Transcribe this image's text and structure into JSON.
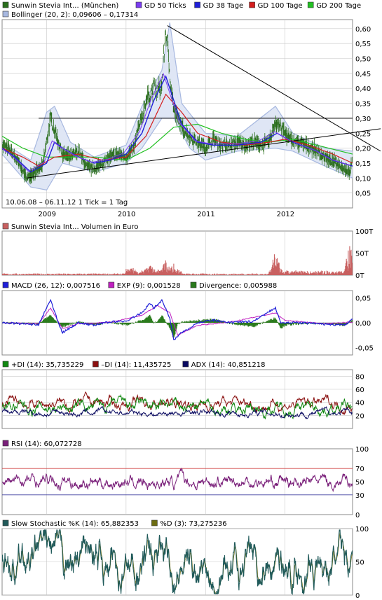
{
  "colors": {
    "price": "#2a6e1c",
    "gd50": "#7b3cf0",
    "gd38": "#1f1fd8",
    "gd100": "#d41e1e",
    "gd200": "#22c022",
    "bollinger": "#a7b8e0",
    "volume": "#c86060",
    "macd": "#1f1fd8",
    "exp": "#c020c0",
    "divergence": "#2a7a1c",
    "plusdi": "#118811",
    "minusdi": "#8a1010",
    "adx": "#0a0a60",
    "rsi": "#7a207a",
    "stoch_k": "#205a5a",
    "stoch_d": "#6b6b10",
    "grid": "#c8c8c8"
  },
  "chart_data": [
    {
      "panel": "price",
      "type": "line",
      "legend": [
        {
          "label": "Sunwin Stevia Int... (München)",
          "color": "#2a6e1c"
        },
        {
          "label": "GD 50 Ticks",
          "color": "#7b3cf0"
        },
        {
          "label": "GD 38 Tage",
          "color": "#1f1fd8"
        },
        {
          "label": "GD 100 Tage",
          "color": "#d41e1e"
        },
        {
          "label": "GD 200 Tage",
          "color": "#22c022"
        },
        {
          "label": "Bollinger (20, 2): 0,09606 – 0,17314",
          "color": "#a7b8e0"
        }
      ],
      "info": "10.06.08 – 06.11.12   1 Tick = 1 Tag",
      "x_ticks": [
        "2009",
        "2010",
        "2011",
        "2012"
      ],
      "y_ticks": [
        "0,05",
        "0,10",
        "0,15",
        "0,20",
        "0,25",
        "0,30",
        "0,35",
        "0,40",
        "0,45",
        "0,50",
        "0,55",
        "0,60"
      ],
      "ylim": [
        0.0,
        0.63
      ],
      "x_range": [
        2008.44,
        2012.85
      ],
      "price": [
        [
          2008.44,
          0.21
        ],
        [
          2008.55,
          0.19
        ],
        [
          2008.65,
          0.15
        ],
        [
          2008.75,
          0.1
        ],
        [
          2008.85,
          0.12
        ],
        [
          2008.95,
          0.14
        ],
        [
          2009.0,
          0.22
        ],
        [
          2009.05,
          0.3
        ],
        [
          2009.1,
          0.26
        ],
        [
          2009.2,
          0.18
        ],
        [
          2009.3,
          0.17
        ],
        [
          2009.4,
          0.19
        ],
        [
          2009.5,
          0.14
        ],
        [
          2009.6,
          0.13
        ],
        [
          2009.7,
          0.15
        ],
        [
          2009.8,
          0.17
        ],
        [
          2009.9,
          0.18
        ],
        [
          2010.0,
          0.17
        ],
        [
          2010.1,
          0.2
        ],
        [
          2010.15,
          0.26
        ],
        [
          2010.2,
          0.3
        ],
        [
          2010.25,
          0.36
        ],
        [
          2010.3,
          0.38
        ],
        [
          2010.35,
          0.4
        ],
        [
          2010.4,
          0.39
        ],
        [
          2010.45,
          0.41
        ],
        [
          2010.5,
          0.6
        ],
        [
          2010.55,
          0.45
        ],
        [
          2010.6,
          0.33
        ],
        [
          2010.7,
          0.27
        ],
        [
          2010.8,
          0.24
        ],
        [
          2010.9,
          0.22
        ],
        [
          2011.0,
          0.2
        ],
        [
          2011.1,
          0.23
        ],
        [
          2011.2,
          0.21
        ],
        [
          2011.3,
          0.21
        ],
        [
          2011.4,
          0.22
        ],
        [
          2011.5,
          0.21
        ],
        [
          2011.6,
          0.22
        ],
        [
          2011.7,
          0.21
        ],
        [
          2011.8,
          0.22
        ],
        [
          2011.88,
          0.29
        ],
        [
          2011.95,
          0.27
        ],
        [
          2012.05,
          0.23
        ],
        [
          2012.15,
          0.22
        ],
        [
          2012.25,
          0.21
        ],
        [
          2012.35,
          0.2
        ],
        [
          2012.45,
          0.18
        ],
        [
          2012.55,
          0.16
        ],
        [
          2012.65,
          0.15
        ],
        [
          2012.75,
          0.13
        ],
        [
          2012.82,
          0.12
        ],
        [
          2012.85,
          0.18
        ]
      ],
      "gd38": [
        [
          2008.44,
          0.2
        ],
        [
          2008.6,
          0.17
        ],
        [
          2008.8,
          0.12
        ],
        [
          2009.0,
          0.15
        ],
        [
          2009.1,
          0.22
        ],
        [
          2009.2,
          0.2
        ],
        [
          2009.4,
          0.17
        ],
        [
          2009.6,
          0.15
        ],
        [
          2009.8,
          0.16
        ],
        [
          2010.0,
          0.18
        ],
        [
          2010.2,
          0.25
        ],
        [
          2010.35,
          0.36
        ],
        [
          2010.5,
          0.44
        ],
        [
          2010.6,
          0.36
        ],
        [
          2010.7,
          0.28
        ],
        [
          2010.9,
          0.22
        ],
        [
          2011.1,
          0.21
        ],
        [
          2011.4,
          0.21
        ],
        [
          2011.7,
          0.22
        ],
        [
          2011.9,
          0.25
        ],
        [
          2012.1,
          0.22
        ],
        [
          2012.4,
          0.19
        ],
        [
          2012.6,
          0.16
        ],
        [
          2012.85,
          0.14
        ]
      ],
      "gd100": [
        [
          2008.44,
          0.2
        ],
        [
          2008.7,
          0.17
        ],
        [
          2008.9,
          0.14
        ],
        [
          2009.1,
          0.17
        ],
        [
          2009.4,
          0.18
        ],
        [
          2009.7,
          0.16
        ],
        [
          2010.0,
          0.17
        ],
        [
          2010.25,
          0.24
        ],
        [
          2010.5,
          0.38
        ],
        [
          2010.7,
          0.32
        ],
        [
          2010.9,
          0.25
        ],
        [
          2011.2,
          0.22
        ],
        [
          2011.5,
          0.21
        ],
        [
          2011.8,
          0.22
        ],
        [
          2012.0,
          0.23
        ],
        [
          2012.3,
          0.21
        ],
        [
          2012.6,
          0.18
        ],
        [
          2012.85,
          0.15
        ]
      ],
      "gd200": [
        [
          2008.44,
          0.24
        ],
        [
          2008.7,
          0.2
        ],
        [
          2009.0,
          0.17
        ],
        [
          2009.3,
          0.17
        ],
        [
          2009.6,
          0.17
        ],
        [
          2010.0,
          0.16
        ],
        [
          2010.3,
          0.2
        ],
        [
          2010.6,
          0.27
        ],
        [
          2010.9,
          0.28
        ],
        [
          2011.2,
          0.25
        ],
        [
          2011.5,
          0.23
        ],
        [
          2011.8,
          0.22
        ],
        [
          2012.1,
          0.23
        ],
        [
          2012.4,
          0.21
        ],
        [
          2012.7,
          0.19
        ],
        [
          2012.85,
          0.18
        ]
      ],
      "bollinger_upper": [
        [
          2008.44,
          0.22
        ],
        [
          2008.8,
          0.16
        ],
        [
          2009.0,
          0.32
        ],
        [
          2009.1,
          0.34
        ],
        [
          2009.3,
          0.22
        ],
        [
          2009.6,
          0.17
        ],
        [
          2010.0,
          0.21
        ],
        [
          2010.2,
          0.34
        ],
        [
          2010.45,
          0.46
        ],
        [
          2010.55,
          0.62
        ],
        [
          2010.7,
          0.35
        ],
        [
          2011.0,
          0.25
        ],
        [
          2011.4,
          0.24
        ],
        [
          2011.88,
          0.34
        ],
        [
          2012.1,
          0.25
        ],
        [
          2012.5,
          0.2
        ],
        [
          2012.85,
          0.19
        ]
      ],
      "bollinger_lower": [
        [
          2008.44,
          0.18
        ],
        [
          2008.8,
          0.07
        ],
        [
          2009.0,
          0.06
        ],
        [
          2009.2,
          0.15
        ],
        [
          2009.6,
          0.12
        ],
        [
          2010.0,
          0.15
        ],
        [
          2010.2,
          0.2
        ],
        [
          2010.45,
          0.3
        ],
        [
          2010.6,
          0.3
        ],
        [
          2010.8,
          0.2
        ],
        [
          2011.0,
          0.16
        ],
        [
          2011.4,
          0.19
        ],
        [
          2011.88,
          0.2
        ],
        [
          2012.1,
          0.19
        ],
        [
          2012.5,
          0.14
        ],
        [
          2012.85,
          0.1
        ]
      ]
    },
    {
      "panel": "volume",
      "type": "bar",
      "legend": [
        {
          "label": "Sunwin Stevia Int... Volumen in Euro",
          "color": "#c86060"
        }
      ],
      "y_ticks": [
        "0T",
        "50T",
        "100T"
      ],
      "ylim": [
        0,
        100
      ],
      "peaks": [
        [
          2010.05,
          12
        ],
        [
          2010.3,
          18
        ],
        [
          2010.5,
          25
        ],
        [
          2010.6,
          15
        ],
        [
          2011.88,
          55
        ],
        [
          2012.82,
          75
        ]
      ]
    },
    {
      "panel": "macd",
      "type": "line",
      "legend": [
        {
          "label": "MACD (26, 12): 0,007516",
          "color": "#1f1fd8"
        },
        {
          "label": "EXP (9): 0,001528",
          "color": "#c020c0"
        },
        {
          "label": "Divergence: 0,005988",
          "color": "#2a7a1c"
        }
      ],
      "y_ticks": [
        "-0,05",
        "0,00",
        "0,05"
      ],
      "ylim": [
        -0.065,
        0.065
      ],
      "macd": [
        [
          2008.44,
          0
        ],
        [
          2008.9,
          -0.004
        ],
        [
          2009.0,
          0.03
        ],
        [
          2009.05,
          0.045
        ],
        [
          2009.15,
          0.0
        ],
        [
          2009.2,
          -0.02
        ],
        [
          2009.4,
          0.0
        ],
        [
          2009.6,
          -0.005
        ],
        [
          2009.8,
          0.002
        ],
        [
          2010.0,
          0.003
        ],
        [
          2010.2,
          0.02
        ],
        [
          2010.3,
          0.04
        ],
        [
          2010.35,
          0.03
        ],
        [
          2010.45,
          0.045
        ],
        [
          2010.55,
          0.01
        ],
        [
          2010.6,
          -0.035
        ],
        [
          2010.7,
          -0.02
        ],
        [
          2010.9,
          0.0
        ],
        [
          2011.1,
          0.005
        ],
        [
          2011.3,
          0.0
        ],
        [
          2011.6,
          0.003
        ],
        [
          2011.88,
          0.03
        ],
        [
          2011.95,
          0.0
        ],
        [
          2012.2,
          0.0
        ],
        [
          2012.5,
          -0.003
        ],
        [
          2012.75,
          -0.005
        ],
        [
          2012.85,
          0.0075
        ]
      ],
      "exp": [
        [
          2008.44,
          0
        ],
        [
          2008.9,
          -0.002
        ],
        [
          2009.05,
          0.03
        ],
        [
          2009.2,
          -0.012
        ],
        [
          2009.4,
          -0.002
        ],
        [
          2009.8,
          0.001
        ],
        [
          2010.2,
          0.015
        ],
        [
          2010.4,
          0.035
        ],
        [
          2010.55,
          0.02
        ],
        [
          2010.65,
          -0.025
        ],
        [
          2010.9,
          -0.005
        ],
        [
          2011.3,
          0.001
        ],
        [
          2011.88,
          0.02
        ],
        [
          2012.0,
          0.005
        ],
        [
          2012.5,
          -0.002
        ],
        [
          2012.85,
          0.0015
        ]
      ]
    },
    {
      "panel": "adx",
      "type": "line",
      "legend": [
        {
          "label": "+DI (14): 35,735229",
          "color": "#118811"
        },
        {
          "label": "–DI (14): 11,435725",
          "color": "#8a1010"
        },
        {
          "label": "ADX (14): 40,851218",
          "color": "#0a0a60"
        }
      ],
      "y_ticks": [
        "20",
        "40",
        "60",
        "80"
      ],
      "ylim": [
        0,
        90
      ]
    },
    {
      "panel": "rsi",
      "type": "line",
      "legend": [
        {
          "label": "RSI (14): 60,072728",
          "color": "#7a207a"
        }
      ],
      "y_ticks": [
        "0",
        "30",
        "50",
        "70",
        "100"
      ],
      "highlight": {
        "upper": 70,
        "lower": 30
      },
      "ylim": [
        0,
        100
      ]
    },
    {
      "panel": "stochastic",
      "type": "line",
      "legend": [
        {
          "label": "Slow Stochastic %K (14): 65,882353",
          "color": "#205a5a"
        },
        {
          "label": "%D (3): 73,275236",
          "color": "#6b6b10"
        }
      ],
      "y_ticks": [
        "0",
        "50",
        "100"
      ],
      "ylim": [
        0,
        100
      ]
    }
  ]
}
